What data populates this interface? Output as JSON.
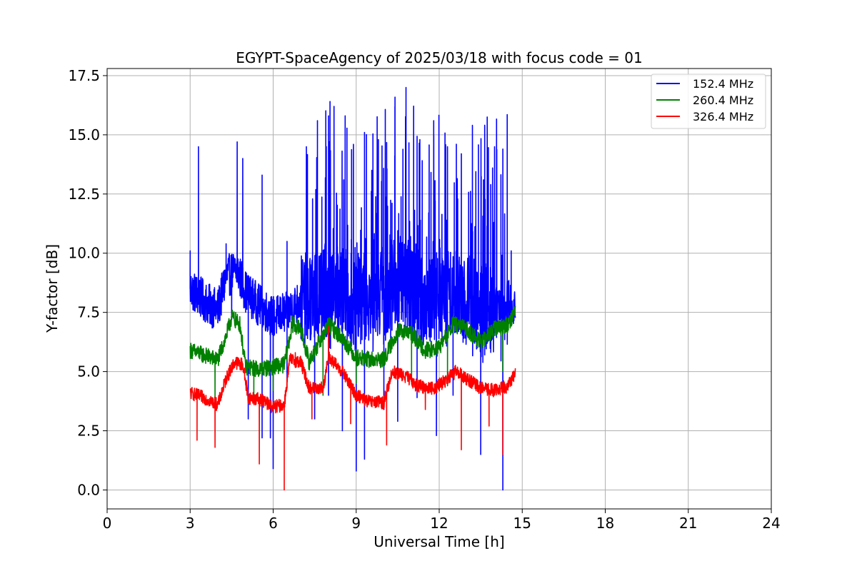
{
  "chart_data": {
    "type": "line",
    "title": "EGYPT-SpaceAgency of 2025/03/18 with focus code = 01",
    "xlabel": "Universal Time [h]",
    "ylabel": "Y-factor [dB]",
    "xlim": [
      0,
      24
    ],
    "ylim": [
      -0.8,
      17.8
    ],
    "x_ticks": [
      "0",
      "3",
      "6",
      "9",
      "12",
      "15",
      "18",
      "21",
      "24"
    ],
    "y_ticks": [
      "0.0",
      "2.5",
      "5.0",
      "7.5",
      "10.0",
      "12.5",
      "15.0",
      "17.5"
    ],
    "grid": true,
    "legend_position": "top-right",
    "series": [
      {
        "name": "152.4 MHz",
        "color": "#0000ff",
        "x_range": [
          3.0,
          14.75
        ],
        "baseline": [
          [
            3.0,
            8.5
          ],
          [
            3.3,
            8.2
          ],
          [
            3.7,
            7.8
          ],
          [
            4.0,
            7.6
          ],
          [
            4.3,
            9.0
          ],
          [
            4.7,
            9.3
          ],
          [
            5.0,
            8.4
          ],
          [
            5.5,
            7.8
          ],
          [
            6.0,
            7.3
          ],
          [
            6.5,
            7.5
          ],
          [
            7.0,
            8.0
          ],
          [
            7.5,
            8.2
          ],
          [
            8.0,
            8.5
          ],
          [
            8.5,
            8.3
          ],
          [
            9.0,
            8.0
          ],
          [
            9.5,
            8.3
          ],
          [
            10.0,
            8.5
          ],
          [
            10.5,
            8.8
          ],
          [
            11.0,
            8.5
          ],
          [
            11.5,
            8.0
          ],
          [
            12.0,
            8.3
          ],
          [
            12.5,
            8.5
          ],
          [
            13.0,
            8.0
          ],
          [
            13.5,
            7.8
          ],
          [
            14.0,
            7.8
          ],
          [
            14.5,
            8.0
          ],
          [
            14.75,
            7.7
          ]
        ],
        "spikes": [
          [
            3.0,
            10.1
          ],
          [
            3.3,
            14.5
          ],
          [
            4.3,
            10.4
          ],
          [
            4.7,
            14.7
          ],
          [
            4.9,
            14.0
          ],
          [
            5.6,
            13.3
          ],
          [
            6.5,
            10.5
          ],
          [
            7.2,
            14.5
          ],
          [
            7.6,
            15.6
          ],
          [
            8.0,
            15.8
          ],
          [
            8.2,
            16.2
          ],
          [
            8.6,
            15.8
          ],
          [
            8.9,
            14.6
          ],
          [
            9.3,
            15.1
          ],
          [
            9.8,
            14.8
          ],
          [
            10.4,
            16.2
          ],
          [
            10.8,
            17.0
          ],
          [
            11.3,
            14.8
          ],
          [
            11.8,
            15.6
          ],
          [
            12.3,
            14.5
          ],
          [
            12.8,
            14.2
          ],
          [
            13.2,
            15.4
          ],
          [
            13.6,
            13.1
          ],
          [
            14.0,
            14.5
          ],
          [
            14.3,
            14.4
          ],
          [
            14.6,
            10.1
          ]
        ],
        "dips": [
          [
            4.5,
            7.2
          ],
          [
            5.1,
            3.0
          ],
          [
            5.6,
            2.2
          ],
          [
            5.9,
            2.2
          ],
          [
            6.0,
            0.9
          ],
          [
            6.5,
            4.3
          ],
          [
            7.5,
            3.0
          ],
          [
            8.0,
            4.0
          ],
          [
            8.5,
            2.5
          ],
          [
            9.0,
            0.8
          ],
          [
            9.3,
            1.3
          ],
          [
            10.0,
            3.4
          ],
          [
            10.5,
            2.9
          ],
          [
            11.2,
            3.9
          ],
          [
            11.9,
            2.3
          ],
          [
            12.5,
            4.0
          ],
          [
            13.5,
            1.5
          ],
          [
            14.3,
            0.0
          ]
        ]
      },
      {
        "name": "260.4 MHz",
        "color": "#008000",
        "x_range": [
          3.0,
          14.75
        ],
        "baseline": [
          [
            3.0,
            5.9
          ],
          [
            3.5,
            5.7
          ],
          [
            4.0,
            5.5
          ],
          [
            4.3,
            6.5
          ],
          [
            4.5,
            7.3
          ],
          [
            4.8,
            7.0
          ],
          [
            5.0,
            5.2
          ],
          [
            5.5,
            5.1
          ],
          [
            6.0,
            5.2
          ],
          [
            6.4,
            5.3
          ],
          [
            6.7,
            7.0
          ],
          [
            7.0,
            6.8
          ],
          [
            7.3,
            5.4
          ],
          [
            8.0,
            7.0
          ],
          [
            8.5,
            6.4
          ],
          [
            9.0,
            5.6
          ],
          [
            9.5,
            5.5
          ],
          [
            10.0,
            5.5
          ],
          [
            10.5,
            6.7
          ],
          [
            11.0,
            6.6
          ],
          [
            11.5,
            5.9
          ],
          [
            12.0,
            6.0
          ],
          [
            12.5,
            7.0
          ],
          [
            13.0,
            6.8
          ],
          [
            13.5,
            6.2
          ],
          [
            14.0,
            6.8
          ],
          [
            14.5,
            7.0
          ],
          [
            14.75,
            7.6
          ]
        ],
        "dips": [
          [
            3.9,
            3.9
          ],
          [
            5.3,
            3.9
          ],
          [
            6.0,
            4.2
          ],
          [
            7.8,
            4.0
          ],
          [
            9.0,
            4.5
          ],
          [
            11.0,
            4.5
          ],
          [
            12.3,
            4.4
          ],
          [
            14.3,
            5.0
          ]
        ]
      },
      {
        "name": "326.4 MHz",
        "color": "#ff0000",
        "x_range": [
          3.0,
          14.75
        ],
        "baseline": [
          [
            3.0,
            4.1
          ],
          [
            3.5,
            3.9
          ],
          [
            4.0,
            3.6
          ],
          [
            4.3,
            4.7
          ],
          [
            4.6,
            5.4
          ],
          [
            4.9,
            5.3
          ],
          [
            5.1,
            3.9
          ],
          [
            5.6,
            3.8
          ],
          [
            6.0,
            3.5
          ],
          [
            6.4,
            3.6
          ],
          [
            6.6,
            5.5
          ],
          [
            7.0,
            5.4
          ],
          [
            7.3,
            4.3
          ],
          [
            7.8,
            4.3
          ],
          [
            8.0,
            5.6
          ],
          [
            8.5,
            5.0
          ],
          [
            9.0,
            4.0
          ],
          [
            9.5,
            3.7
          ],
          [
            10.0,
            3.7
          ],
          [
            10.3,
            5.0
          ],
          [
            10.8,
            4.8
          ],
          [
            11.2,
            4.4
          ],
          [
            11.8,
            4.3
          ],
          [
            12.2,
            4.6
          ],
          [
            12.6,
            5.0
          ],
          [
            13.0,
            4.7
          ],
          [
            13.5,
            4.3
          ],
          [
            14.0,
            4.2
          ],
          [
            14.5,
            4.4
          ],
          [
            14.75,
            5.0
          ]
        ],
        "spikes": [
          [
            8.0,
            6.9
          ],
          [
            6.8,
            5.8
          ]
        ],
        "dips": [
          [
            3.25,
            2.1
          ],
          [
            3.9,
            1.8
          ],
          [
            5.5,
            1.1
          ],
          [
            6.4,
            0.0
          ],
          [
            7.4,
            3.0
          ],
          [
            8.8,
            2.8
          ],
          [
            10.1,
            1.9
          ],
          [
            11.5,
            3.4
          ],
          [
            12.8,
            1.7
          ],
          [
            13.8,
            2.7
          ],
          [
            14.3,
            1.5
          ]
        ]
      }
    ]
  }
}
